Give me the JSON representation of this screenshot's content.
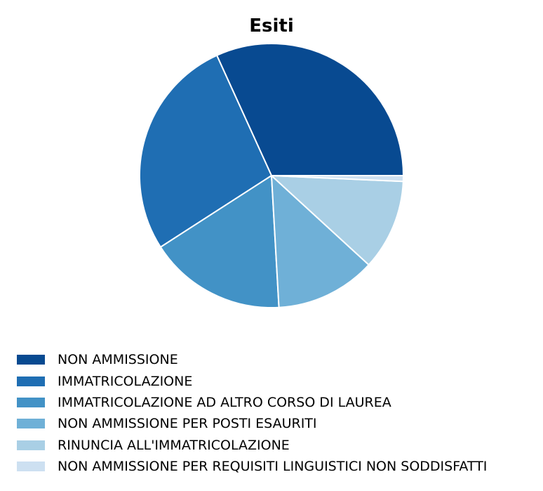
{
  "chart_data": {
    "type": "pie",
    "title": "Esiti",
    "categories": [
      "NON AMMISSIONE",
      "IMMATRICOLAZIONE",
      "IMMATRICOLAZIONE AD ALTRO CORSO DI LAUREA",
      "NON AMMISSIONE PER POSTI ESAURITI",
      "RINUNCIA ALL'IMMATRICOLAZIONE",
      "NON AMMISSIONE PER REQUISITI LINGUISTICI NON SODDISFATTI"
    ],
    "values": [
      31.8,
      27.3,
      16.8,
      12.3,
      11.1,
      0.7
    ],
    "colors": [
      "#084a91",
      "#1f6eb3",
      "#4292c6",
      "#6fb0d7",
      "#a9cfe5",
      "#cde0f1"
    ],
    "legend_position": "bottom",
    "start_angle": "0° (3 o'clock), counterclockwise"
  }
}
